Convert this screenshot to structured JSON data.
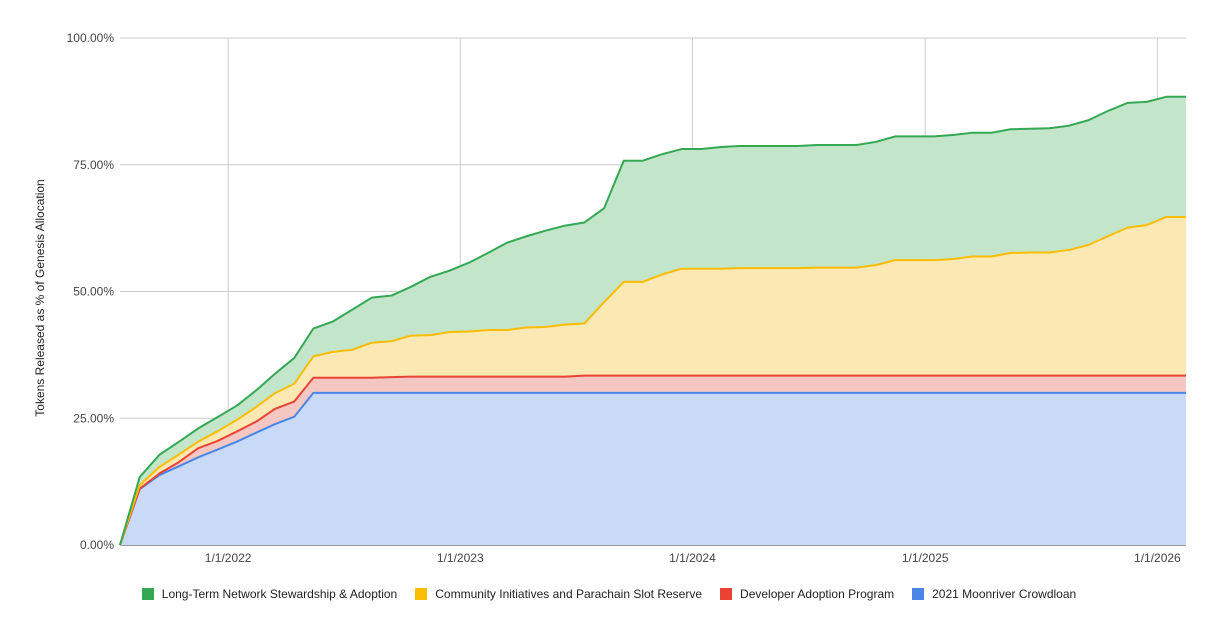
{
  "chart_data": {
    "type": "area",
    "stacked": true,
    "title": "",
    "xlabel": "",
    "ylabel": "Tokens Released as % of Genesis Allocation",
    "ylim": [
      0,
      100
    ],
    "xlim": [
      "2021-07-15",
      "2026-02-15"
    ],
    "y_ticks": [
      "0.00%",
      "25.00%",
      "50.00%",
      "75.00%",
      "100.00%"
    ],
    "y_tick_values": [
      0,
      25,
      50,
      75,
      100
    ],
    "x_ticks": [
      "1/1/2022",
      "1/1/2023",
      "1/1/2024",
      "1/1/2025",
      "1/1/2026"
    ],
    "x_tick_dates": [
      "2022-01-01",
      "2023-01-01",
      "2024-01-01",
      "2025-01-01",
      "2026-01-01"
    ],
    "grid": true,
    "legend_position": "bottom",
    "x": [
      "2021-07-15",
      "2021-08-15",
      "2021-09-15",
      "2021-10-15",
      "2021-11-15",
      "2021-12-15",
      "2022-01-15",
      "2022-02-15",
      "2022-03-15",
      "2022-04-15",
      "2022-05-15",
      "2022-06-15",
      "2022-07-15",
      "2022-08-15",
      "2022-09-15",
      "2022-10-15",
      "2022-11-15",
      "2022-12-15",
      "2023-01-15",
      "2023-02-15",
      "2023-03-15",
      "2023-04-15",
      "2023-05-15",
      "2023-06-15",
      "2023-07-15",
      "2023-08-15",
      "2023-09-15",
      "2023-10-15",
      "2023-11-15",
      "2023-12-15",
      "2024-01-15",
      "2024-02-15",
      "2024-03-15",
      "2024-04-15",
      "2024-05-15",
      "2024-06-15",
      "2024-07-15",
      "2024-08-15",
      "2024-09-15",
      "2024-10-15",
      "2024-11-15",
      "2024-12-15",
      "2025-01-15",
      "2025-02-15",
      "2025-03-15",
      "2025-04-15",
      "2025-05-15",
      "2025-06-15",
      "2025-07-15",
      "2025-08-15",
      "2025-09-15",
      "2025-10-15",
      "2025-11-15",
      "2025-12-15",
      "2026-01-15",
      "2026-02-15"
    ],
    "series": [
      {
        "name": "2021 Moonriver Crowdloan",
        "color": "#4a86e8",
        "fill": "#c9daf8",
        "values": [
          0.0,
          11.0,
          13.8,
          15.5,
          17.3,
          18.8,
          20.4,
          22.2,
          23.8,
          25.3,
          30.0,
          30.0,
          30.0,
          30.0,
          30.0,
          30.0,
          30.0,
          30.0,
          30.0,
          30.0,
          30.0,
          30.0,
          30.0,
          30.0,
          30.0,
          30.0,
          30.0,
          30.0,
          30.0,
          30.0,
          30.0,
          30.0,
          30.0,
          30.0,
          30.0,
          30.0,
          30.0,
          30.0,
          30.0,
          30.0,
          30.0,
          30.0,
          30.0,
          30.0,
          30.0,
          30.0,
          30.0,
          30.0,
          30.0,
          30.0,
          30.0,
          30.0,
          30.0,
          30.0,
          30.0,
          30.0
        ]
      },
      {
        "name": "Developer Adoption Program",
        "color": "#ea4335",
        "fill": "#f4c7c3",
        "values": [
          0.0,
          0.1,
          0.3,
          0.8,
          1.8,
          1.7,
          2.0,
          2.2,
          3.0,
          3.0,
          3.0,
          3.0,
          3.0,
          3.0,
          3.1,
          3.2,
          3.2,
          3.2,
          3.2,
          3.2,
          3.2,
          3.2,
          3.2,
          3.2,
          3.4,
          3.4,
          3.4,
          3.4,
          3.4,
          3.4,
          3.4,
          3.4,
          3.4,
          3.4,
          3.4,
          3.4,
          3.4,
          3.4,
          3.4,
          3.4,
          3.4,
          3.4,
          3.4,
          3.4,
          3.4,
          3.4,
          3.4,
          3.4,
          3.4,
          3.4,
          3.4,
          3.4,
          3.4,
          3.4,
          3.4,
          3.4
        ]
      },
      {
        "name": "Community Initiatives and Parachain Slot Reserve",
        "color": "#fbbc04",
        "fill": "#fce8b2",
        "values": [
          0.0,
          0.7,
          1.3,
          1.5,
          1.3,
          1.9,
          2.3,
          2.9,
          3.1,
          3.5,
          4.2,
          5.1,
          5.5,
          6.9,
          7.1,
          8.1,
          8.2,
          8.8,
          8.9,
          9.2,
          9.2,
          9.7,
          9.8,
          10.3,
          10.3,
          14.5,
          18.5,
          18.5,
          20.0,
          21.1,
          21.1,
          21.1,
          21.2,
          21.2,
          21.2,
          21.2,
          21.3,
          21.3,
          21.3,
          21.8,
          22.8,
          22.8,
          22.8,
          23.0,
          23.5,
          23.5,
          24.2,
          24.3,
          24.3,
          24.8,
          25.8,
          27.5,
          29.2,
          29.7,
          31.3,
          31.3
        ]
      },
      {
        "name": "Long-Term Network Stewardship & Adoption",
        "color": "#34a853",
        "fill": "#c3e6cb",
        "values": [
          0.0,
          1.6,
          2.4,
          2.5,
          2.6,
          2.8,
          2.8,
          3.3,
          3.8,
          5.1,
          5.5,
          6.0,
          7.9,
          8.9,
          9.0,
          9.6,
          11.5,
          12.1,
          13.6,
          15.3,
          17.2,
          18.0,
          19.0,
          19.5,
          19.9,
          18.5,
          23.9,
          23.9,
          23.7,
          23.6,
          23.6,
          24.0,
          24.1,
          24.1,
          24.1,
          24.1,
          24.2,
          24.2,
          24.2,
          24.3,
          24.4,
          24.4,
          24.4,
          24.5,
          24.4,
          24.4,
          24.4,
          24.4,
          24.5,
          24.5,
          24.6,
          24.7,
          24.6,
          24.3,
          23.7,
          23.7
        ]
      }
    ]
  }
}
